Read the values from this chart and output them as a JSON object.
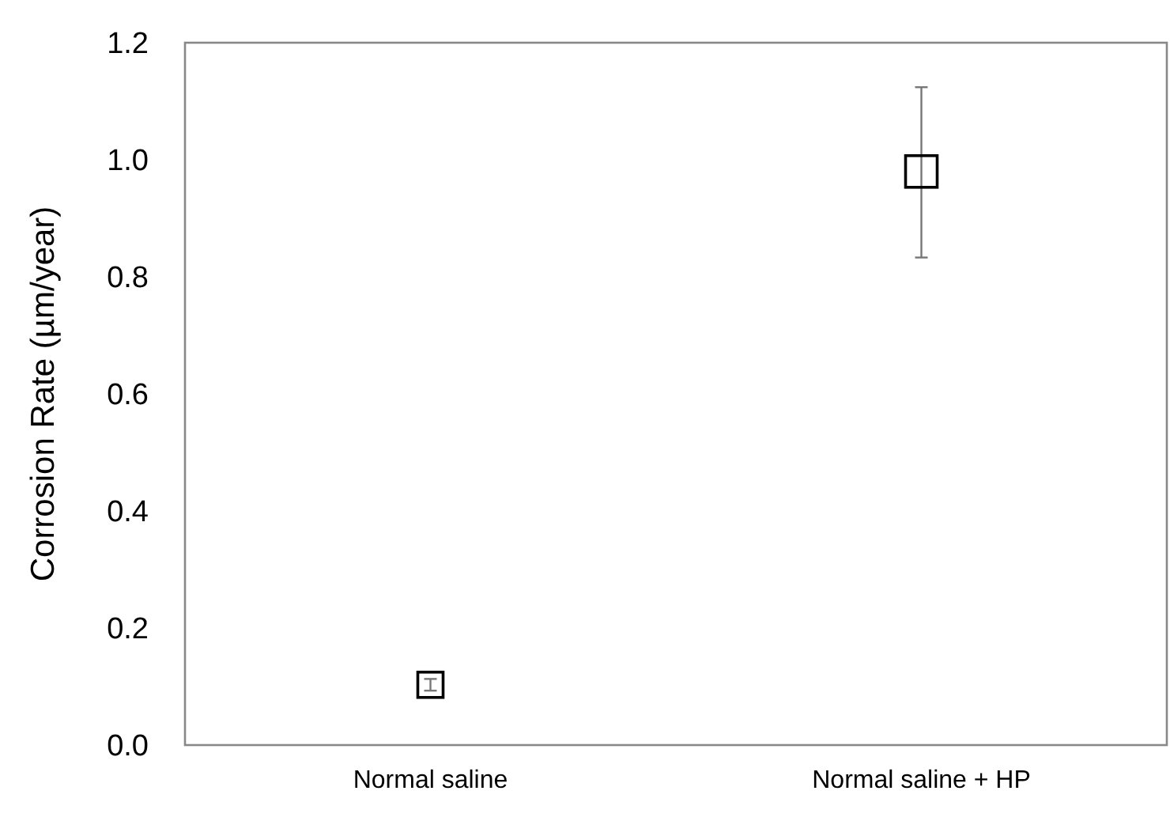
{
  "chart_data": {
    "type": "scatter",
    "ylabel": "Corrosion Rate (µm/year)",
    "categories": [
      "Normal saline",
      "Normal saline + HP"
    ],
    "series": [
      {
        "color": "#000000",
        "values": [
          0.103,
          0.98
        ],
        "errors": [
          0.01,
          [
            0.833,
            1.124
          ]
        ]
      }
    ],
    "ylim": [
      0,
      1.2
    ],
    "yticks": [
      {
        "value": 0,
        "label": "0.0"
      },
      0.2,
      0.4,
      0.6,
      0.8,
      {
        "value": 1,
        "label": "1.0"
      },
      1.2
    ],
    "marker": "square",
    "grid": false
  }
}
